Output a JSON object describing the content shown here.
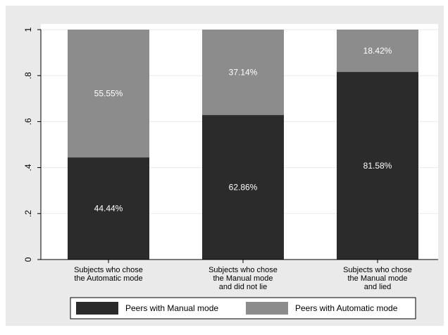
{
  "chart_data": {
    "type": "bar",
    "stacked": true,
    "categories": [
      [
        "Subjects who chose",
        "the Automatic mode"
      ],
      [
        "Subjects who chose",
        "the Manual mode",
        "and did not lie"
      ],
      [
        "Subjects who chose",
        "the Manual mode",
        "and lied"
      ]
    ],
    "series": [
      {
        "name": "Peers with Manual mode",
        "color": "#2b2b2b",
        "values": [
          0.4444,
          0.6286,
          0.8158
        ],
        "labels": [
          "44.44%",
          "62.86%",
          "81.58%"
        ]
      },
      {
        "name": "Peers with Automatic mode",
        "color": "#8c8c8c",
        "values": [
          0.5555,
          0.3714,
          0.1842
        ],
        "labels": [
          "55.55%",
          "37.14%",
          "18.42%"
        ]
      }
    ],
    "yticks": [
      "0",
      ".2",
      ".4",
      ".6",
      ".8",
      "1"
    ],
    "ytick_values": [
      0,
      0.2,
      0.4,
      0.6,
      0.8,
      1
    ],
    "ylim": [
      0,
      1
    ],
    "grid": true,
    "legend_position": "bottom",
    "colors": {
      "background": "#eaeaea",
      "plot_background": "#ffffff",
      "grid": "#eaeaea"
    }
  }
}
